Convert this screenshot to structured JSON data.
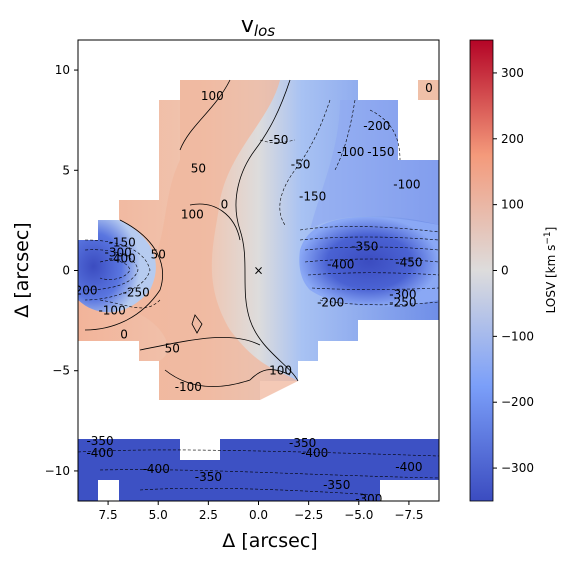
{
  "chart_data": {
    "type": "heatmap",
    "title": "v",
    "title_subscript": "los",
    "xlabel": "Δ  [arcsec]",
    "ylabel": "Δ  [arcsec]",
    "xlim": [
      9.0,
      -9.0
    ],
    "ylim": [
      -11.5,
      11.5
    ],
    "x_ticks": [
      7.5,
      5.0,
      2.5,
      0.0,
      -2.5,
      -5.0,
      -7.5
    ],
    "x_tick_labels": [
      "7.5",
      "5.0",
      "2.5",
      "0.0",
      "−2.5",
      "−5.0",
      "−7.5"
    ],
    "y_ticks": [
      10,
      5,
      0,
      -5,
      -10
    ],
    "y_tick_labels": [
      "10",
      "5",
      "0",
      "−5",
      "−10"
    ],
    "colorbar": {
      "label": "LOSV [km s",
      "label_sup": "−1",
      "label_end": "]",
      "range": [
        -350,
        350
      ],
      "ticks": [
        300,
        200,
        100,
        0,
        -100,
        -200,
        -300
      ],
      "tick_labels": [
        "300",
        "200",
        "100",
        "0",
        "−100",
        "−200",
        "−300"
      ],
      "colormap": "coolwarm"
    },
    "center_marker": {
      "x": 0.0,
      "y": 0.0,
      "symbol": "×"
    },
    "contour_labels": [
      {
        "text": "100",
        "x": 2.3,
        "y": 8.7
      },
      {
        "text": "0",
        "x": -8.5,
        "y": 9.1
      },
      {
        "text": "-50",
        "x": -1.0,
        "y": 6.5
      },
      {
        "text": "-200",
        "x": -5.9,
        "y": 7.2
      },
      {
        "text": "-150",
        "x": -6.1,
        "y": 5.9
      },
      {
        "text": "50",
        "x": 3.0,
        "y": 5.1
      },
      {
        "text": "-50",
        "x": -2.1,
        "y": 5.3
      },
      {
        "text": "-100",
        "x": -4.6,
        "y": 5.9
      },
      {
        "text": "-100",
        "x": -7.4,
        "y": 4.3
      },
      {
        "text": "0",
        "x": 1.7,
        "y": 3.3
      },
      {
        "text": "-150",
        "x": -2.7,
        "y": 3.7
      },
      {
        "text": "100",
        "x": 3.3,
        "y": 2.8
      },
      {
        "text": "-150",
        "x": 6.8,
        "y": 1.4
      },
      {
        "text": "-300",
        "x": 7.0,
        "y": 0.9
      },
      {
        "text": "-400",
        "x": 6.8,
        "y": 0.6
      },
      {
        "text": "50",
        "x": 5.0,
        "y": 0.8
      },
      {
        "text": "-350",
        "x": -5.3,
        "y": 1.2
      },
      {
        "text": "-400",
        "x": -4.1,
        "y": 0.3
      },
      {
        "text": "-450",
        "x": -7.5,
        "y": 0.4
      },
      {
        "text": "-250",
        "x": 6.1,
        "y": -1.1
      },
      {
        "text": "200",
        "x": 8.6,
        "y": -1.0
      },
      {
        "text": "-100",
        "x": 7.3,
        "y": -2.0
      },
      {
        "text": "-300",
        "x": -7.2,
        "y": -1.2
      },
      {
        "text": "-200",
        "x": -3.6,
        "y": -1.6
      },
      {
        "text": "-250",
        "x": -7.2,
        "y": -1.6
      },
      {
        "text": "0",
        "x": 6.7,
        "y": -3.2
      },
      {
        "text": "50",
        "x": 4.3,
        "y": -3.9
      },
      {
        "text": "100",
        "x": -1.1,
        "y": -5.0
      },
      {
        "text": "-100",
        "x": 3.5,
        "y": -5.8
      },
      {
        "text": "-350",
        "x": 7.9,
        "y": -8.5
      },
      {
        "text": "-400",
        "x": 7.9,
        "y": -9.1
      },
      {
        "text": "-350",
        "x": -2.2,
        "y": -8.6
      },
      {
        "text": "-400",
        "x": -2.8,
        "y": -9.1
      },
      {
        "text": "-400",
        "x": 5.1,
        "y": -9.9
      },
      {
        "text": "-350",
        "x": 2.5,
        "y": -10.3
      },
      {
        "text": "-400",
        "x": -7.5,
        "y": -9.8
      },
      {
        "text": "-350",
        "x": -3.9,
        "y": -10.7
      },
      {
        "text": "-300",
        "x": -5.5,
        "y": -11.4
      }
    ]
  }
}
